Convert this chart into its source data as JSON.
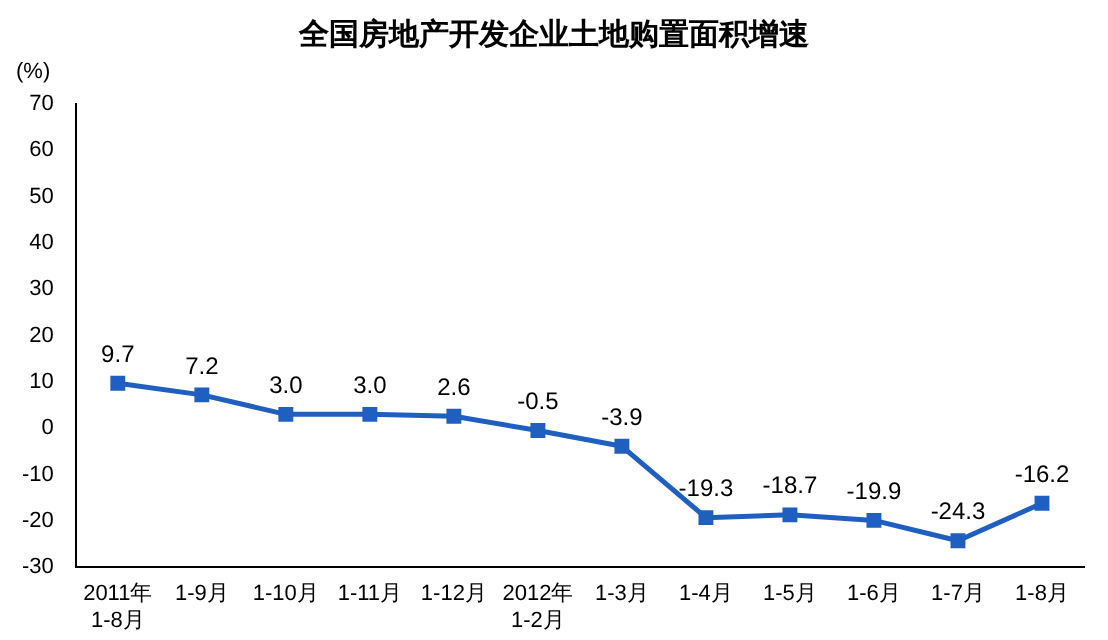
{
  "chart_data": {
    "type": "line",
    "title": "全国房地产开发企业土地购置面积增速",
    "ylabel": "(%)",
    "categories": [
      "2011年\n1-8月",
      "1-9月",
      "1-10月",
      "1-11月",
      "1-12月",
      "2012年\n1-2月",
      "1-3月",
      "1-4月",
      "1-5月",
      "1-6月",
      "1-7月",
      "1-8月"
    ],
    "series": [
      {
        "color": "#1f5fbf",
        "values": [
          9.7,
          7.2,
          3.0,
          3.0,
          2.6,
          -0.5,
          -3.9,
          -19.3,
          -18.7,
          -19.9,
          -24.3,
          -16.2
        ],
        "value_labels": [
          "9.7",
          "7.2",
          "3.0",
          "3.0",
          "2.6",
          "-0.5",
          "-3.9",
          "-19.3",
          "-18.7",
          "-19.9",
          "-24.3",
          "-16.2"
        ]
      }
    ],
    "ylim": [
      -30,
      70
    ],
    "yticks": [
      -30,
      -20,
      -10,
      0,
      10,
      20,
      30,
      40,
      50,
      60,
      70
    ],
    "grid": false,
    "legend": false,
    "marker": "square",
    "line_style": "solid"
  }
}
